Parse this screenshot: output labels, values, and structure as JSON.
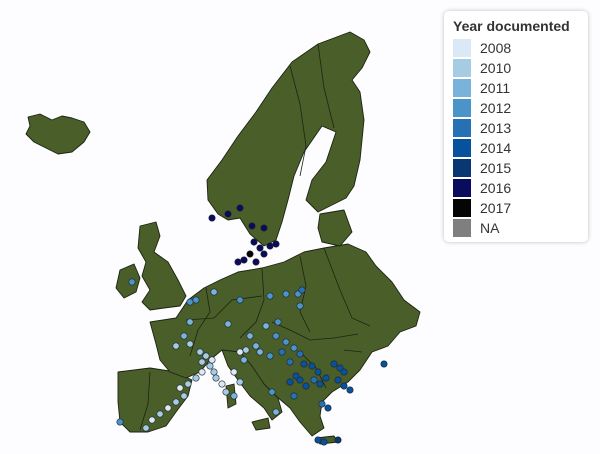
{
  "legend": {
    "title": "Year documented",
    "items": [
      {
        "label": "2008",
        "color": "#dbe9f6"
      },
      {
        "label": "2010",
        "color": "#a6cce4"
      },
      {
        "label": "2011",
        "color": "#7ab3da"
      },
      {
        "label": "2012",
        "color": "#4a94c9"
      },
      {
        "label": "2013",
        "color": "#2670b4"
      },
      {
        "label": "2014",
        "color": "#08519c"
      },
      {
        "label": "2015",
        "color": "#083772"
      },
      {
        "label": "2016",
        "color": "#0a0b5c"
      },
      {
        "label": "2017",
        "color": "#050505"
      },
      {
        "label": "NA",
        "color": "#7f7f7f"
      }
    ]
  },
  "map": {
    "region": "Europe",
    "land_color": "#4a5e2a",
    "background_color": "#fdfcfe"
  }
}
